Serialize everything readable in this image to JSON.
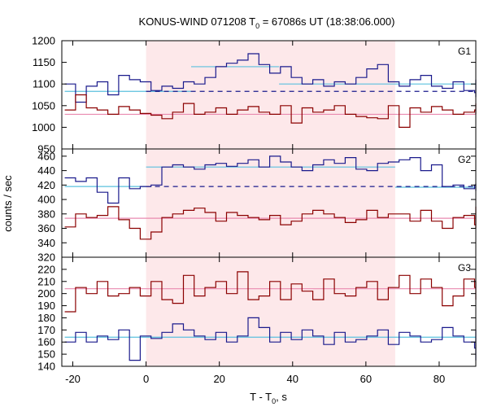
{
  "chart_data": {
    "type": "line",
    "title": "KONUS-WIND 071208 T",
    "title_sub": "0",
    "title_rest": " = 67086s UT (18:38:06.000)",
    "xlabel": "T - T",
    "xlabel_sub": "0",
    "xlabel_rest": ", s",
    "ylabel": "counts / sec",
    "xlim": [
      -23,
      90
    ],
    "x_ticks": [
      -20,
      0,
      20,
      40,
      60,
      80
    ],
    "shaded_interval": [
      0,
      68
    ],
    "colors": {
      "shade": "#fde8ea",
      "blue": "#1a1a8c",
      "red": "#8b0000",
      "cyan": "#5bc0de",
      "pink": "#e98ab0"
    },
    "bin_width": 2.944,
    "bin_start": -22.2,
    "panels": [
      {
        "label": "G1",
        "ylim": [
          950,
          1200
        ],
        "y_ticks": [
          950,
          1000,
          1050,
          1100,
          1150,
          1200
        ],
        "series": [
          {
            "color": "blue",
            "values": [
              1100,
              1058,
              1095,
              1105,
              1075,
              1120,
              1110,
              1105,
              1085,
              1095,
              1090,
              1105,
              1100,
              1115,
              1140,
              1148,
              1155,
              1170,
              1145,
              1125,
              1140,
              1115,
              1100,
              1110,
              1095,
              1105,
              1100,
              1115,
              1135,
              1145,
              1105,
              1095,
              1110,
              1120,
              1095,
              1090,
              1105,
              1085,
              1080,
              1090,
              1095,
              1110,
              1070,
              1105,
              1080
            ]
          },
          {
            "color": "red",
            "values": [
              1040,
              1075,
              1045,
              1040,
              1030,
              1048,
              1040,
              1032,
              1028,
              1020,
              1035,
              1055,
              1030,
              1035,
              1045,
              1030,
              1040,
              1048,
              1035,
              1030,
              1050,
              1010,
              1045,
              1035,
              1040,
              1050,
              1030,
              1025,
              1022,
              1020,
              1050,
              1000,
              1045,
              1035,
              1048,
              1040,
              1030,
              1035,
              1040,
              1030,
              1040,
              1050,
              1045,
              1030,
              1055
            ]
          }
        ],
        "background_level": {
          "color": "blue",
          "value": 1083,
          "dashed_after": 0
        },
        "fits": [
          {
            "color": "cyan",
            "segments": [
              [
                -22.2,
                12.3,
                1083
              ],
              [
                12.3,
                36.3,
                1140
              ],
              [
                36.3,
                90,
                1100
              ]
            ]
          },
          {
            "color": "pink",
            "segments": [
              [
                -22.2,
                90,
                1030
              ]
            ]
          }
        ]
      },
      {
        "label": "G2",
        "ylim": [
          320,
          470
        ],
        "y_ticks": [
          320,
          340,
          360,
          380,
          400,
          420,
          440,
          460
        ],
        "series": [
          {
            "color": "blue",
            "values": [
              430,
              425,
              430,
              410,
              395,
              430,
              415,
              418,
              420,
              445,
              448,
              445,
              442,
              448,
              450,
              446,
              450,
              455,
              445,
              460,
              452,
              445,
              440,
              448,
              455,
              450,
              458,
              442,
              440,
              450,
              452,
              455,
              458,
              440,
              448,
              418,
              420,
              415,
              420,
              412,
              418,
              415,
              420,
              422,
              418
            ]
          },
          {
            "color": "red",
            "values": [
              362,
              380,
              375,
              378,
              390,
              372,
              360,
              345,
              355,
              375,
              380,
              385,
              388,
              382,
              370,
              382,
              378,
              375,
              372,
              378,
              365,
              370,
              380,
              385,
              380,
              375,
              368,
              372,
              385,
              375,
              380,
              380,
              370,
              385,
              370,
              360,
              375,
              378,
              365,
              370,
              360,
              375,
              390,
              365,
              380
            ]
          }
        ],
        "background_level": {
          "color": "blue",
          "value": 418,
          "dashed_after": 0
        },
        "fits": [
          {
            "color": "cyan",
            "segments": [
              [
                -22.2,
                0,
                418
              ],
              [
                0,
                68,
                445
              ],
              [
                68,
                90,
                417
              ]
            ]
          },
          {
            "color": "pink",
            "segments": [
              [
                -22.2,
                90,
                374
              ]
            ]
          }
        ]
      },
      {
        "label": "G3",
        "ylim": [
          140,
          230
        ],
        "y_ticks": [
          140,
          150,
          160,
          170,
          180,
          190,
          200,
          210,
          220
        ],
        "series": [
          {
            "color": "blue",
            "values": [
              160,
              168,
              160,
              165,
              162,
              170,
              145,
              165,
              163,
              168,
              175,
              170,
              165,
              162,
              168,
              160,
              165,
              180,
              172,
              160,
              168,
              162,
              170,
              165,
              158,
              168,
              160,
              162,
              165,
              170,
              158,
              168,
              165,
              160,
              162,
              172,
              165,
              160,
              155,
              158,
              162,
              145,
              170,
              160,
              168
            ]
          },
          {
            "color": "red",
            "values": [
              185,
              205,
              200,
              210,
              198,
              200,
              205,
              198,
              210,
              195,
              192,
              215,
              198,
              205,
              210,
              200,
              218,
              195,
              198,
              210,
              195,
              208,
              202,
              195,
              212,
              200,
              198,
              205,
              210,
              195,
              205,
              215,
              200,
              212,
              205,
              190,
              198,
              212,
              205,
              195,
              200,
              198,
              205,
              200,
              210
            ]
          }
        ],
        "fits": [
          {
            "color": "cyan",
            "segments": [
              [
                -22.2,
                90,
                164
              ]
            ]
          },
          {
            "color": "pink",
            "segments": [
              [
                -22.2,
                90,
                204
              ]
            ]
          }
        ]
      }
    ]
  }
}
